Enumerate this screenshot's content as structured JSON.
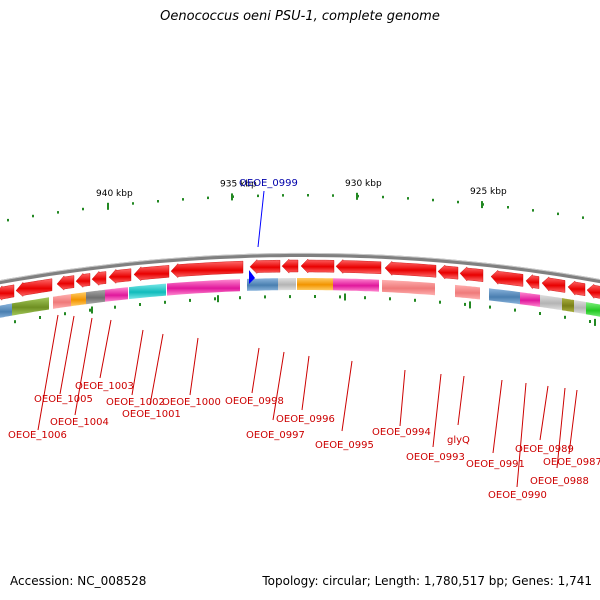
{
  "title": "Oenococcus oeni PSU-1, complete genome",
  "footer": {
    "accession": "Accession: NC_008528",
    "summary": "Topology: circular; Length: 1,780,517 bp; Genes: 1,741"
  },
  "focus_gene": "OEOE_0999",
  "ruler": [
    "940 kbp",
    "935 kbp",
    "930 kbp",
    "925 kbp"
  ],
  "gene_labels": [
    "OEOE_1006",
    "OEOE_1005",
    "OEOE_1004",
    "OEOE_1003",
    "OEOE_1002",
    "OEOE_1001",
    "OEOE_1000",
    "OEOE_0998",
    "OEOE_0997",
    "OEOE_0996",
    "OEOE_0995",
    "OEOE_0994",
    "OEOE_0993",
    "glyQ",
    "OEOE_0991",
    "OEOE_0990",
    "OEOE_0989",
    "OEOE_0988",
    "OEOE_0987"
  ],
  "colors": {
    "arrow": "#ff0000",
    "label": "#cc0000",
    "focus": "#0000aa",
    "tick": "#228822",
    "backbone": "#808080"
  }
}
